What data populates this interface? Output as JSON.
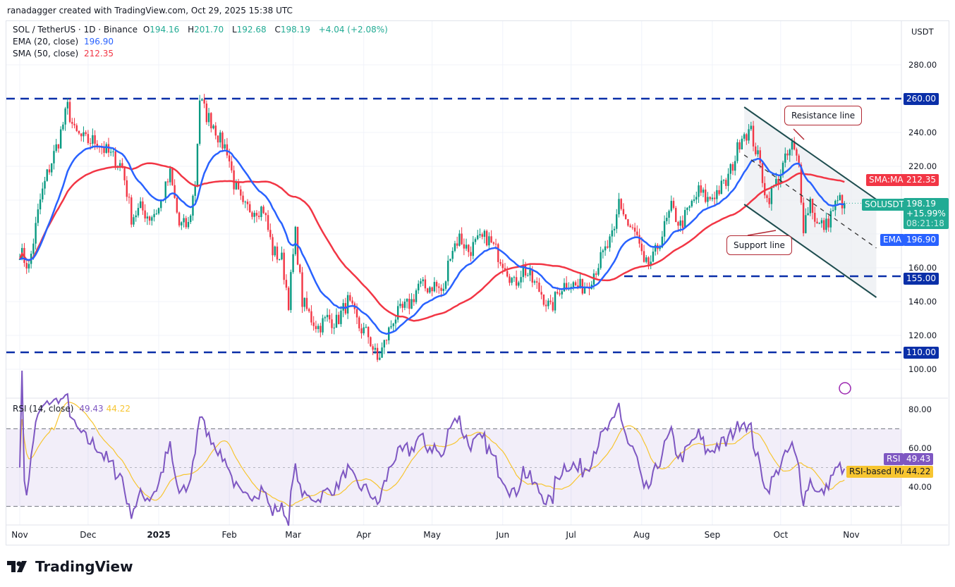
{
  "credit": "ranadagger created with TradingView.com, Oct 29, 2025 15:38 UTC",
  "legend": {
    "symbol": "SOL / TetherUS · 1D · Binance",
    "o_label": "O",
    "o": "194.16",
    "h_label": "H",
    "h": "201.70",
    "l_label": "L",
    "l": "192.68",
    "c_label": "C",
    "c": "198.19",
    "change": "+4.04 (+2.08%)",
    "ema_label": "EMA (20, close)",
    "ema_value": "196.90",
    "sma_label": "SMA (50, close)",
    "sma_value": "212.35",
    "rsi_label": "RSI (14, close)",
    "rsi_value": "49.43",
    "rsi_ma_value": "44.22"
  },
  "currency": "USDT",
  "tags": {
    "sma_name": "SMA:MA",
    "sma_value": "212.35",
    "symbol": "SOLUSDT",
    "price": "198.19",
    "pct": "+15.99%",
    "countdown": "08:21:18",
    "ema_name": "EMA",
    "ema_value": "196.90",
    "rsi_name": "RSI",
    "rsi_value": "49.43",
    "rsi_ma_name": "RSI-based MA",
    "rsi_ma_value": "44.22"
  },
  "levels": [
    "260.00",
    "155.00",
    "110.00"
  ],
  "annotations": {
    "resistance": "Resistance line",
    "support": "Support line"
  },
  "brand": "TradingView",
  "colors": {
    "up": "#089981",
    "down": "#f23645",
    "ema": "#2962ff",
    "sma": "#f23645",
    "rsi": "#7e57c2",
    "rsi_ma": "#f7c531",
    "level": "#0a2fa8",
    "channel": "#1e4d4f"
  },
  "chart_data": {
    "type": "candlestick",
    "price_ticks": [
      "280.00",
      "240.00",
      "220.00",
      "160.00",
      "140.00",
      "120.00",
      "100.00"
    ],
    "rsi_ticks": [
      "80.00",
      "60.00",
      "40.00"
    ],
    "x_ticks": [
      "Nov",
      "Dec",
      "2025",
      "Feb",
      "Mar",
      "Apr",
      "May",
      "Jun",
      "Jul",
      "Aug",
      "Sep",
      "Oct",
      "Nov"
    ],
    "ylim": [
      95,
      295
    ],
    "rsi_bands": [
      70,
      50,
      30
    ],
    "horizontal_levels": [
      260,
      155,
      110
    ],
    "channel": {
      "resistance": [
        [
          "2025-09-15",
          255
        ],
        [
          "2025-11-12",
          200.4
        ]
      ],
      "support": [
        [
          "2025-09-15",
          197.5
        ],
        [
          "2025-11-12",
          142.5
        ]
      ],
      "mid": [
        [
          "2025-09-15",
          226.7
        ],
        [
          "2025-11-12",
          171.7
        ]
      ]
    },
    "closes": [
      [
        "2024-11-01",
        170
      ],
      [
        "2024-11-05",
        160
      ],
      [
        "2024-11-10",
        200
      ],
      [
        "2024-11-13",
        215
      ],
      [
        "2024-11-18",
        235
      ],
      [
        "2024-11-22",
        255
      ],
      [
        "2024-11-25",
        240
      ],
      [
        "2024-11-30",
        235
      ],
      [
        "2024-12-05",
        235
      ],
      [
        "2024-12-08",
        230
      ],
      [
        "2024-12-12",
        225
      ],
      [
        "2024-12-16",
        220
      ],
      [
        "2024-12-20",
        190
      ],
      [
        "2024-12-24",
        195
      ],
      [
        "2024-12-28",
        190
      ],
      [
        "2025-01-01",
        195
      ],
      [
        "2025-01-06",
        215
      ],
      [
        "2025-01-10",
        185
      ],
      [
        "2025-01-14",
        185
      ],
      [
        "2025-01-17",
        210
      ],
      [
        "2025-01-19",
        260
      ],
      [
        "2025-01-22",
        250
      ],
      [
        "2025-01-25",
        245
      ],
      [
        "2025-01-28",
        235
      ],
      [
        "2025-01-31",
        230
      ],
      [
        "2025-02-03",
        210
      ],
      [
        "2025-02-07",
        195
      ],
      [
        "2025-02-12",
        195
      ],
      [
        "2025-02-16",
        195
      ],
      [
        "2025-02-20",
        170
      ],
      [
        "2025-02-24",
        165
      ],
      [
        "2025-02-27",
        140
      ],
      [
        "2025-03-02",
        180
      ],
      [
        "2025-03-05",
        140
      ],
      [
        "2025-03-09",
        130
      ],
      [
        "2025-03-12",
        125
      ],
      [
        "2025-03-16",
        130
      ],
      [
        "2025-03-20",
        128
      ],
      [
        "2025-03-25",
        140
      ],
      [
        "2025-03-30",
        125
      ],
      [
        "2025-04-03",
        120
      ],
      [
        "2025-04-07",
        105
      ],
      [
        "2025-04-10",
        115
      ],
      [
        "2025-04-14",
        130
      ],
      [
        "2025-04-18",
        135
      ],
      [
        "2025-04-22",
        140
      ],
      [
        "2025-04-25",
        150
      ],
      [
        "2025-04-28",
        148
      ],
      [
        "2025-05-02",
        150
      ],
      [
        "2025-05-06",
        145
      ],
      [
        "2025-05-09",
        170
      ],
      [
        "2025-05-13",
        178
      ],
      [
        "2025-05-17",
        170
      ],
      [
        "2025-05-21",
        175
      ],
      [
        "2025-05-25",
        178
      ],
      [
        "2025-05-29",
        170
      ],
      [
        "2025-06-02",
        162
      ],
      [
        "2025-06-06",
        150
      ],
      [
        "2025-06-10",
        160
      ],
      [
        "2025-06-14",
        152
      ],
      [
        "2025-06-18",
        145
      ],
      [
        "2025-06-22",
        135
      ],
      [
        "2025-06-26",
        148
      ],
      [
        "2025-06-30",
        152
      ],
      [
        "2025-07-04",
        148
      ],
      [
        "2025-07-08",
        150
      ],
      [
        "2025-07-12",
        160
      ],
      [
        "2025-07-16",
        170
      ],
      [
        "2025-07-20",
        180
      ],
      [
        "2025-07-22",
        200
      ],
      [
        "2025-07-26",
        185
      ],
      [
        "2025-07-30",
        178
      ],
      [
        "2025-08-02",
        160
      ],
      [
        "2025-08-06",
        165
      ],
      [
        "2025-08-10",
        180
      ],
      [
        "2025-08-14",
        195
      ],
      [
        "2025-08-18",
        185
      ],
      [
        "2025-08-22",
        195
      ],
      [
        "2025-08-26",
        205
      ],
      [
        "2025-08-30",
        200
      ],
      [
        "2025-09-03",
        205
      ],
      [
        "2025-09-07",
        210
      ],
      [
        "2025-09-11",
        225
      ],
      [
        "2025-09-14",
        240
      ],
      [
        "2025-09-18",
        240
      ],
      [
        "2025-09-22",
        220
      ],
      [
        "2025-09-25",
        200
      ],
      [
        "2025-09-29",
        210
      ],
      [
        "2025-10-02",
        220
      ],
      [
        "2025-10-06",
        232
      ],
      [
        "2025-10-09",
        220
      ],
      [
        "2025-10-11",
        185
      ],
      [
        "2025-10-14",
        200
      ],
      [
        "2025-10-17",
        185
      ],
      [
        "2025-10-21",
        185
      ],
      [
        "2025-10-24",
        195
      ],
      [
        "2025-10-27",
        200
      ],
      [
        "2025-10-29",
        198.19
      ]
    ]
  }
}
